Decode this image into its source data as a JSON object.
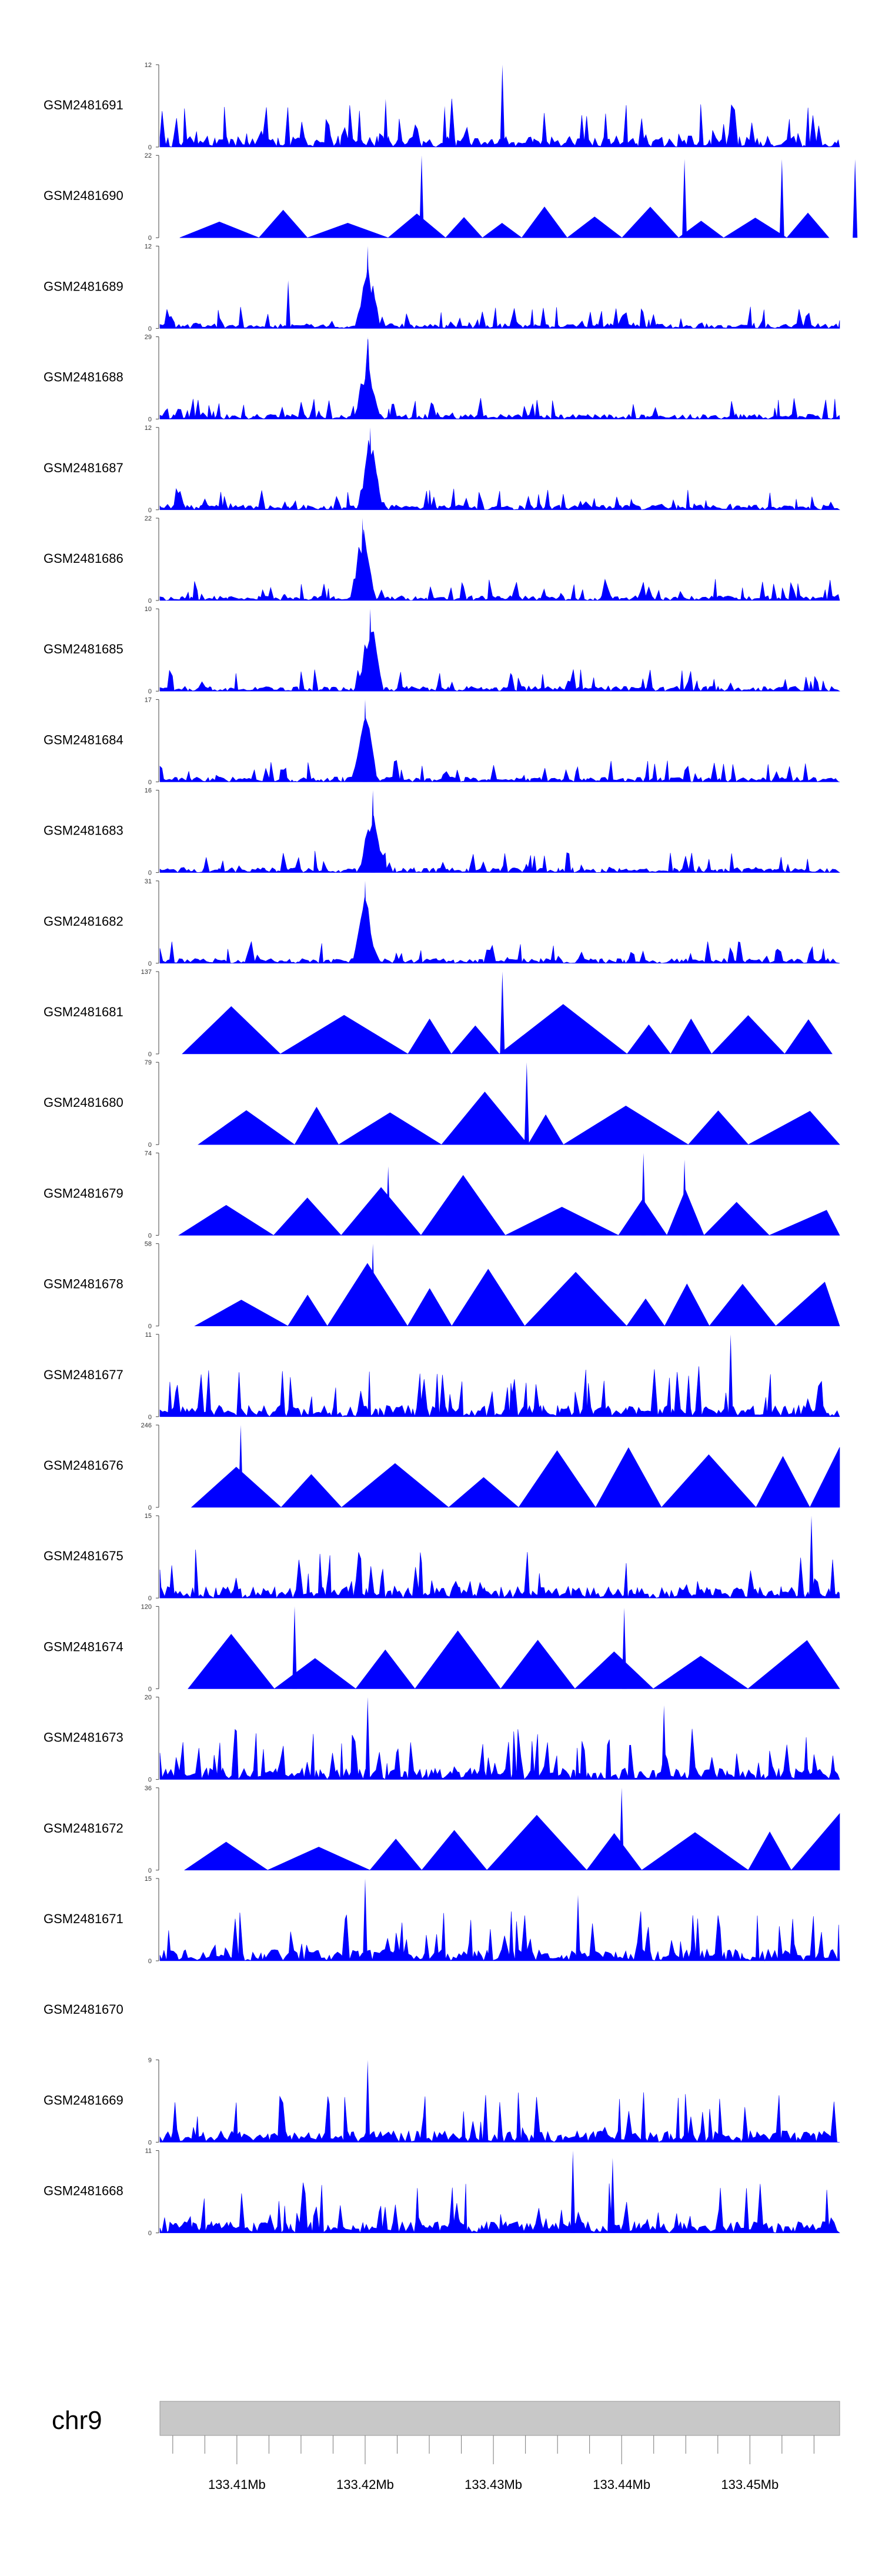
{
  "chart_data": {
    "type": "area",
    "title": "",
    "chromosome": "chr9",
    "fill_color": "#0000ff",
    "x_axis": {
      "range": [
        133.404,
        133.457
      ],
      "ticks": [
        "133.41Mb",
        "133.42Mb",
        "133.43Mb",
        "133.44Mb",
        "133.45Mb"
      ]
    },
    "tracks": [
      {
        "name": "GSM2481691",
        "ymax": "12",
        "ymin": "0",
        "style": "dense",
        "seed": 11,
        "peaks": [
          [
            133.4307,
            12
          ],
          [
            133.4262,
            6
          ],
          [
            133.4216,
            7
          ]
        ]
      },
      {
        "name": "GSM2481690",
        "ymax": "22",
        "ymin": "0",
        "style": "sparse",
        "seed": 12,
        "peaks": [
          [
            133.4244,
            22
          ],
          [
            133.4449,
            21
          ],
          [
            133.4525,
            21
          ],
          [
            133.4582,
            21
          ]
        ]
      },
      {
        "name": "GSM2481689",
        "ymax": "12",
        "ymin": "0",
        "style": "peak",
        "seed": 13,
        "peaks": [
          [
            133.4202,
            12
          ],
          [
            133.414,
            7
          ]
        ]
      },
      {
        "name": "GSM2481688",
        "ymax": "29",
        "ymin": "0",
        "style": "peak",
        "seed": 14,
        "peaks": [
          [
            133.4202,
            29
          ]
        ]
      },
      {
        "name": "GSM2481687",
        "ymax": "12",
        "ymin": "0",
        "style": "peak",
        "seed": 15,
        "peaks": [
          [
            133.4204,
            12
          ]
        ]
      },
      {
        "name": "GSM2481686",
        "ymax": "22",
        "ymin": "0",
        "style": "peak",
        "seed": 16,
        "peaks": [
          [
            133.4198,
            22
          ]
        ]
      },
      {
        "name": "GSM2481685",
        "ymax": "10",
        "ymin": "0",
        "style": "peak",
        "seed": 17,
        "peaks": [
          [
            133.4204,
            10
          ]
        ]
      },
      {
        "name": "GSM2481684",
        "ymax": "17",
        "ymin": "0",
        "style": "peak",
        "seed": 18,
        "peaks": [
          [
            133.42,
            17
          ]
        ]
      },
      {
        "name": "GSM2481683",
        "ymax": "16",
        "ymin": "0",
        "style": "peak",
        "seed": 19,
        "peaks": [
          [
            133.4206,
            16
          ]
        ]
      },
      {
        "name": "GSM2481682",
        "ymax": "31",
        "ymin": "0",
        "style": "peak",
        "seed": 20,
        "peaks": [
          [
            133.42,
            31
          ]
        ]
      },
      {
        "name": "GSM2481681",
        "ymax": "137",
        "ymin": "0",
        "style": "triangles",
        "seed": 21,
        "peaks": [
          [
            133.4307,
            137
          ]
        ]
      },
      {
        "name": "GSM2481680",
        "ymax": "79",
        "ymin": "0",
        "style": "triangles",
        "seed": 22,
        "peaks": [
          [
            133.4326,
            79
          ]
        ]
      },
      {
        "name": "GSM2481679",
        "ymax": "74",
        "ymin": "0",
        "style": "triangles",
        "seed": 23,
        "peaks": [
          [
            133.4417,
            74
          ],
          [
            133.4449,
            68
          ],
          [
            133.4218,
            62
          ]
        ]
      },
      {
        "name": "GSM2481678",
        "ymax": "58",
        "ymin": "0",
        "style": "triangles",
        "seed": 24,
        "peaks": [
          [
            133.4206,
            58
          ]
        ]
      },
      {
        "name": "GSM2481677",
        "ymax": "11",
        "ymin": "0",
        "style": "dense",
        "seed": 25,
        "peaks": [
          [
            133.4485,
            11
          ]
        ]
      },
      {
        "name": "GSM2481676",
        "ymax": "246",
        "ymin": "0",
        "style": "triangles",
        "seed": 26,
        "peaks": [
          [
            133.4103,
            246
          ]
        ]
      },
      {
        "name": "GSM2481675",
        "ymax": "15",
        "ymin": "0",
        "style": "dense",
        "seed": 27,
        "peaks": [
          [
            133.4548,
            15
          ]
        ]
      },
      {
        "name": "GSM2481674",
        "ymax": "120",
        "ymin": "0",
        "style": "triangles",
        "seed": 28,
        "peaks": [
          [
            133.4145,
            120
          ],
          [
            133.4402,
            118
          ]
        ]
      },
      {
        "name": "GSM2481673",
        "ymax": "20",
        "ymin": "0",
        "style": "dense",
        "seed": 29,
        "peaks": [
          [
            133.4202,
            20
          ],
          [
            133.4433,
            18
          ]
        ]
      },
      {
        "name": "GSM2481672",
        "ymax": "36",
        "ymin": "0",
        "style": "triangles",
        "seed": 30,
        "peaks": [
          [
            133.44,
            36
          ]
        ]
      },
      {
        "name": "GSM2481671",
        "ymax": "15",
        "ymin": "0",
        "style": "dense",
        "seed": 31,
        "peaks": [
          [
            133.42,
            15
          ],
          [
            133.4366,
            12
          ]
        ]
      },
      {
        "name": "GSM2481670",
        "ymax": "",
        "ymin": "",
        "style": "empty",
        "seed": 32,
        "peaks": []
      },
      {
        "name": "GSM2481669",
        "ymax": "9",
        "ymin": "0",
        "style": "dense",
        "seed": 33,
        "peaks": [
          [
            133.4202,
            9
          ]
        ]
      },
      {
        "name": "GSM2481668",
        "ymax": "11",
        "ymin": "0",
        "style": "dense",
        "seed": 34,
        "peaks": [
          [
            133.4362,
            11
          ],
          [
            133.4393,
            10
          ]
        ]
      }
    ]
  }
}
